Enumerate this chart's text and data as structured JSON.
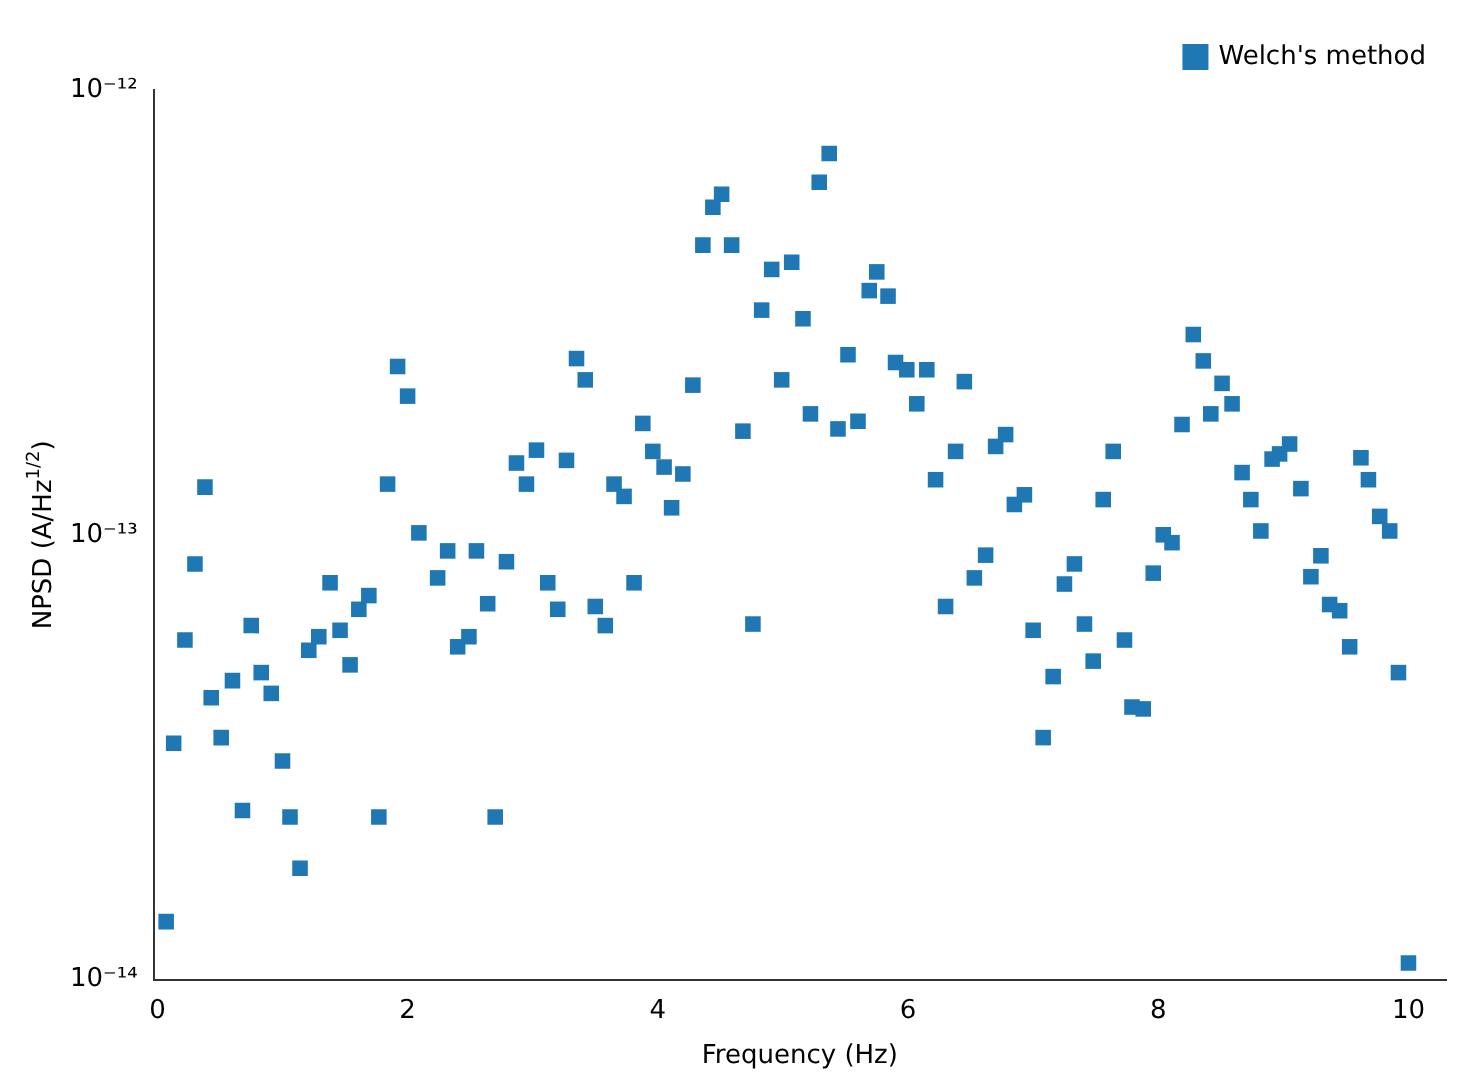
{
  "chart_data": {
    "type": "scatter",
    "xlabel": "Frequency (Hz)",
    "ylabel": "NPSD (A/Hz$^{1/2}$)",
    "log": "y",
    "grid": false,
    "legend": "top right",
    "marker": "square",
    "xlim": [
      -0.03,
      10.3
    ],
    "xticks": [
      0,
      2,
      4,
      6,
      8,
      10
    ],
    "ylim": [
      1e-14,
      1e-12
    ],
    "yticks": [
      {
        "value": 1e-14,
        "label": "10⁻¹⁴"
      },
      {
        "value": 1e-13,
        "label": "10⁻¹³"
      },
      {
        "value": 1e-12,
        "label": "10⁻¹²"
      }
    ],
    "series": [
      {
        "name": "Welch's method",
        "color": "#1f77b4",
        "x": [
          0.07,
          0.13,
          0.22,
          0.3,
          0.38,
          0.43,
          0.51,
          0.6,
          0.68,
          0.75,
          0.83,
          0.91,
          1.0,
          1.06,
          1.14,
          1.21,
          1.29,
          1.38,
          1.46,
          1.54,
          1.61,
          1.69,
          1.77,
          1.84,
          1.92,
          2.0,
          2.09,
          2.24,
          2.32,
          2.4,
          2.49,
          2.55,
          2.64,
          2.7,
          2.79,
          2.87,
          2.95,
          3.03,
          3.12,
          3.2,
          3.27,
          3.35,
          3.42,
          3.5,
          3.58,
          3.65,
          3.73,
          3.81,
          3.88,
          3.96,
          4.05,
          4.11,
          4.2,
          4.28,
          4.36,
          4.44,
          4.51,
          4.59,
          4.68,
          4.76,
          4.83,
          4.91,
          4.99,
          5.07,
          5.16,
          5.22,
          5.29,
          5.37,
          5.44,
          5.52,
          5.6,
          5.69,
          5.75,
          5.84,
          5.9,
          5.99,
          6.07,
          6.15,
          6.22,
          6.3,
          6.38,
          6.45,
          6.53,
          6.62,
          6.7,
          6.78,
          6.85,
          6.93,
          7.0,
          7.08,
          7.16,
          7.25,
          7.33,
          7.41,
          7.48,
          7.56,
          7.64,
          7.73,
          7.79,
          7.88,
          7.96,
          8.04,
          8.11,
          8.19,
          8.28,
          8.36,
          8.42,
          8.51,
          8.59,
          8.67,
          8.74,
          8.82,
          8.91,
          8.97,
          9.05,
          9.14,
          9.22,
          9.3,
          9.37,
          9.45,
          9.53,
          9.62,
          9.68,
          9.77,
          9.85,
          9.92,
          10.0
        ],
        "values": [
          1.35e-14,
          3.4e-14,
          5.8e-14,
          8.6e-14,
          1.28e-13,
          4.3e-14,
          3.5e-14,
          4.7e-14,
          2.4e-14,
          6.25e-14,
          4.9e-14,
          4.4e-14,
          3.1e-14,
          2.32e-14,
          1.78e-14,
          5.5e-14,
          5.9e-14,
          7.8e-14,
          6.1e-14,
          5.1e-14,
          6.8e-14,
          7.3e-14,
          2.32e-14,
          1.3e-13,
          2.39e-13,
          2.05e-13,
          1.01e-13,
          8e-14,
          9.2e-14,
          5.6e-14,
          5.9e-14,
          9.2e-14,
          7e-14,
          2.32e-14,
          8.7e-14,
          1.45e-13,
          1.3e-13,
          1.55e-13,
          7.8e-14,
          6.8e-14,
          1.47e-13,
          2.49e-13,
          2.23e-13,
          6.9e-14,
          6.25e-14,
          1.3e-13,
          1.22e-13,
          7.8e-14,
          1.78e-13,
          1.54e-13,
          1.42e-13,
          1.15e-13,
          1.37e-13,
          2.17e-13,
          4.48e-13,
          5.45e-13,
          5.83e-13,
          4.48e-13,
          1.71e-13,
          6.3e-14,
          3.2e-13,
          3.95e-13,
          2.23e-13,
          4.1e-13,
          3.06e-13,
          1.87e-13,
          6.2e-13,
          7.2e-13,
          1.73e-13,
          2.54e-13,
          1.8e-13,
          3.54e-13,
          3.9e-13,
          3.44e-13,
          2.44e-13,
          2.35e-13,
          1.97e-13,
          2.35e-13,
          1.33e-13,
          6.9e-14,
          1.54e-13,
          2.21e-13,
          8e-14,
          9e-14,
          1.58e-13,
          1.68e-13,
          1.17e-13,
          1.23e-13,
          6.1e-14,
          3.5e-14,
          4.8e-14,
          7.75e-14,
          8.6e-14,
          6.3e-14,
          5.2e-14,
          1.2e-13,
          1.54e-13,
          5.8e-14,
          4.1e-14,
          4.06e-14,
          8.2e-14,
          1e-13,
          9.6e-14,
          1.77e-13,
          2.82e-13,
          2.46e-13,
          1.87e-13,
          2.19e-13,
          1.97e-13,
          1.38e-13,
          1.2e-13,
          1.02e-13,
          1.48e-13,
          1.52e-13,
          1.6e-13,
          1.27e-13,
          8.05e-14,
          8.97e-14,
          6.97e-14,
          6.75e-14,
          5.6e-14,
          1.49e-13,
          1.33e-13,
          1.1e-13,
          1.02e-13,
          4.9e-14,
          1.09e-14
        ]
      }
    ]
  }
}
